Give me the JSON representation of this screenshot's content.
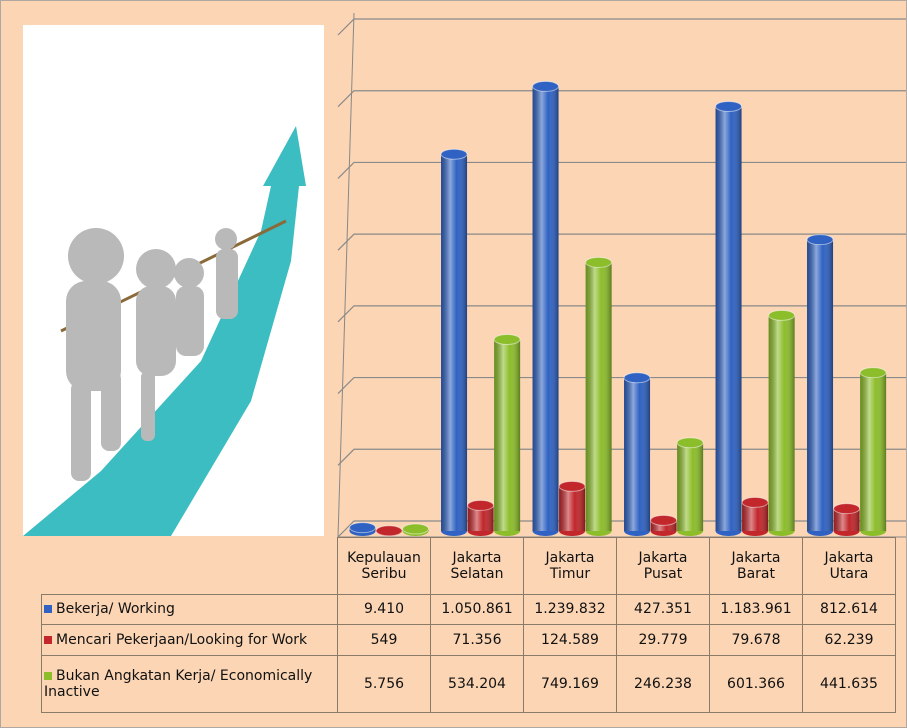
{
  "chart_data": {
    "type": "bar3d",
    "categories": [
      "Kepulauan Seribu",
      "Jakarta Selatan",
      "Jakarta Timur",
      "Jakarta Pusat",
      "Jakarta Barat",
      "Jakarta Utara"
    ],
    "series": [
      {
        "name": "Bekerja/ Working",
        "color": "#2f62c2",
        "values": [
          9410,
          1050861,
          1239832,
          427351,
          1183961,
          812614
        ],
        "value_labels": [
          "9.410",
          "1.050.861",
          "1.239.832",
          "427.351",
          "1.183.961",
          "812.614"
        ]
      },
      {
        "name": "Mencari Pekerjaan/Looking for Work",
        "color": "#c1272b",
        "values": [
          549,
          71356,
          124589,
          29779,
          79678,
          62239
        ],
        "value_labels": [
          "549",
          "71.356",
          "124.589",
          "29.779",
          "79.678",
          "62.239"
        ]
      },
      {
        "name": "Bukan Angkatan Kerja/ Economically Inactive",
        "color": "#8cbd2b",
        "values": [
          5756,
          534204,
          749169,
          246238,
          601366,
          441635
        ],
        "value_labels": [
          "5.756",
          "534.204",
          "749.169",
          "246.238",
          "601.366",
          "441.635"
        ]
      }
    ],
    "ylim": [
      0,
      1400000
    ],
    "yticks": [
      0,
      200000,
      400000,
      600000,
      800000,
      1000000,
      1200000,
      1400000
    ],
    "grid": true
  }
}
